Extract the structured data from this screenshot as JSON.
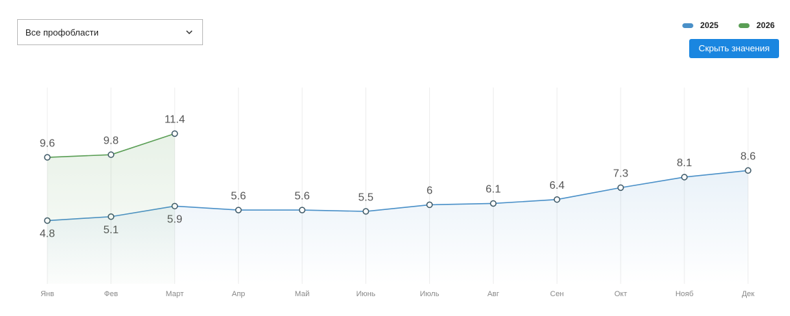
{
  "dropdown": {
    "label": "Все профобласти"
  },
  "button": {
    "label": "Скрыть значения"
  },
  "chart_data": {
    "type": "line",
    "categories": [
      "Янв",
      "Фев",
      "Март",
      "Апр",
      "Май",
      "Июнь",
      "Июль",
      "Авг",
      "Сен",
      "Окт",
      "Нояб",
      "Дек"
    ],
    "series": [
      {
        "name": "2025",
        "color": "#4a90c8",
        "values": [
          4.8,
          5.1,
          5.9,
          5.6,
          5.6,
          5.5,
          6,
          6.1,
          6.4,
          7.3,
          8.1,
          8.6
        ]
      },
      {
        "name": "2026",
        "color": "#5a9e55",
        "values": [
          9.6,
          9.8,
          11.4,
          null,
          null,
          null,
          null,
          null,
          null,
          null,
          null,
          null
        ]
      }
    ],
    "ylim": [
      0,
      15
    ]
  }
}
